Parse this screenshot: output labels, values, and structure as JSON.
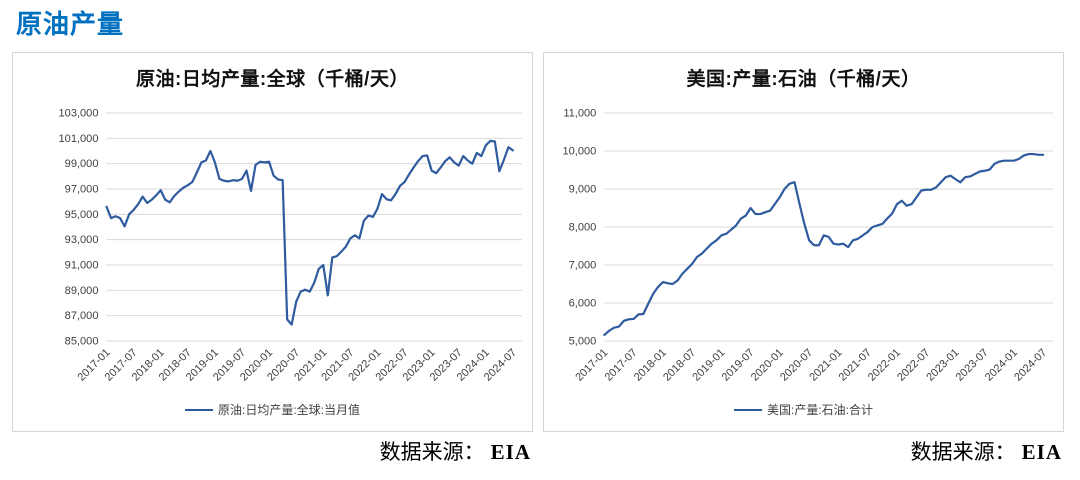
{
  "page_title": "原油产量",
  "accent_color": "#0070C0",
  "line_color": "#2f5b9f",
  "gridline_color": "#d9d9d9",
  "axis_text_color": "#404040",
  "sources": [
    {
      "label": "数据来源：",
      "value": "EIA"
    },
    {
      "label": "数据来源：",
      "value": "EIA"
    }
  ],
  "chart_data": [
    {
      "type": "line",
      "title": "原油:日均产量:全球（千桶/天）",
      "xlabel": "",
      "ylabel": "",
      "frequency": "monthly",
      "x_start": "2017-01",
      "x_end": "2024-07",
      "x_tick_labels": [
        "2017-01",
        "2017-07",
        "2018-01",
        "2018-07",
        "2019-01",
        "2019-07",
        "2020-01",
        "2020-07",
        "2021-01",
        "2021-07",
        "2022-01",
        "2022-07",
        "2023-01",
        "2023-07",
        "2024-01",
        "2024-07"
      ],
      "x_tick_every_months": 6,
      "ylim": [
        85000,
        103000
      ],
      "y_tick_step": 2000,
      "y_tick_labels": [
        "85,000",
        "87,000",
        "89,000",
        "91,000",
        "93,000",
        "95,000",
        "97,000",
        "99,000",
        "101,000",
        "103,000"
      ],
      "grid": "horizontal",
      "legend_position": "bottom",
      "series": [
        {
          "name": "原油:日均产量:全球:当月值",
          "color": "#2f5b9f",
          "values": [
            95600,
            94700,
            94850,
            94700,
            94050,
            95000,
            95350,
            95800,
            96400,
            95900,
            96150,
            96500,
            96900,
            96150,
            95950,
            96450,
            96800,
            97100,
            97300,
            97550,
            98300,
            99100,
            99250,
            100000,
            99100,
            97800,
            97650,
            97600,
            97700,
            97650,
            97800,
            98450,
            96850,
            98900,
            99150,
            99100,
            99150,
            98050,
            97750,
            97700,
            86700,
            86300,
            88100,
            88900,
            89050,
            88900,
            89600,
            90700,
            91000,
            88600,
            91600,
            91700,
            92050,
            92450,
            93100,
            93350,
            93100,
            94500,
            94900,
            94800,
            95450,
            96600,
            96200,
            96100,
            96600,
            97250,
            97550,
            98150,
            98700,
            99200,
            99600,
            99650,
            98450,
            98250,
            98700,
            99200,
            99500,
            99100,
            98850,
            99600,
            99250,
            99000,
            99850,
            99600,
            100450,
            100800,
            100750,
            98400,
            99300,
            100300,
            100050
          ]
        }
      ]
    },
    {
      "type": "line",
      "title": "美国:产量:石油（千桶/天）",
      "xlabel": "",
      "ylabel": "",
      "frequency": "monthly",
      "x_start": "2017-01",
      "x_end": "2024-07",
      "x_tick_labels": [
        "2017-01",
        "2017-07",
        "2018-01",
        "2018-07",
        "2019-01",
        "2019-07",
        "2020-01",
        "2020-07",
        "2021-01",
        "2021-07",
        "2022-01",
        "2022-07",
        "2023-01",
        "2023-07",
        "2024-01",
        "2024-07"
      ],
      "x_tick_every_months": 6,
      "ylim": [
        5000,
        11000
      ],
      "y_tick_step": 1000,
      "y_tick_labels": [
        "5,000",
        "6,000",
        "7,000",
        "8,000",
        "9,000",
        "10,000",
        "11,000"
      ],
      "grid": "horizontal",
      "legend_position": "bottom",
      "series": [
        {
          "name": "美国:产量:石油:合计",
          "color": "#2f5b9f",
          "values": [
            5160,
            5270,
            5350,
            5380,
            5530,
            5570,
            5580,
            5700,
            5710,
            5980,
            6240,
            6420,
            6550,
            6520,
            6500,
            6590,
            6770,
            6900,
            7030,
            7210,
            7300,
            7430,
            7560,
            7650,
            7780,
            7820,
            7930,
            8040,
            8220,
            8300,
            8500,
            8340,
            8340,
            8390,
            8430,
            8610,
            8790,
            9010,
            9140,
            9180,
            8620,
            8090,
            7650,
            7520,
            7520,
            7780,
            7740,
            7560,
            7540,
            7560,
            7470,
            7650,
            7690,
            7780,
            7870,
            8000,
            8040,
            8080,
            8220,
            8350,
            8600,
            8690,
            8560,
            8600,
            8780,
            8960,
            8980,
            8980,
            9040,
            9175,
            9310,
            9350,
            9260,
            9175,
            9310,
            9330,
            9395,
            9460,
            9480,
            9510,
            9660,
            9720,
            9745,
            9745,
            9745,
            9790,
            9880,
            9920,
            9920,
            9900,
            9900
          ]
        }
      ]
    }
  ]
}
